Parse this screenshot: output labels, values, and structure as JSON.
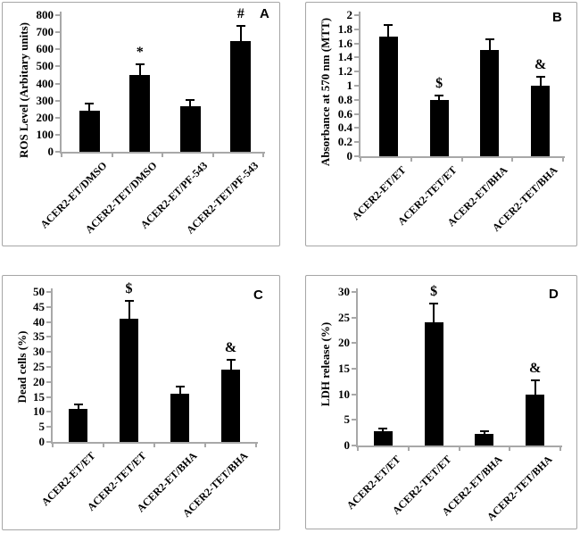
{
  "figure": {
    "description": "Four-panel bar chart figure, panels A-D, black bars with upper error bars and significance symbols",
    "background": "#ffffff"
  },
  "colors": {
    "bar": "#000000",
    "axis": "#a8a8a8",
    "panel_border": "#a6a6a6",
    "text": "#000000"
  },
  "chart_data": [
    {
      "type": "bar",
      "panel": "A",
      "title": "",
      "xlabel": "",
      "ylabel": "ROS Level (Arbitary units)",
      "categories": [
        "ACER2-ET/DMSO",
        "ACER2-TET/DMSO",
        "ACER2-ET/PF-543",
        "ACER2-TET/PF-543"
      ],
      "values": [
        240,
        450,
        265,
        650
      ],
      "errors": [
        40,
        65,
        40,
        85
      ],
      "annotations": [
        "",
        "*",
        "",
        "#"
      ],
      "ylim": [
        0,
        800
      ],
      "ytick_labels": [
        "0",
        "100",
        "200",
        "300",
        "400",
        "500",
        "600",
        "700",
        "800"
      ],
      "grid": false,
      "legend": false
    },
    {
      "type": "bar",
      "panel": "B",
      "title": "",
      "xlabel": "",
      "ylabel": "Absorbance at 570 nm (MTT)",
      "categories": [
        "ACER2-ET/ET",
        "ACER2-TET/ET",
        "ACER2-ET/BHA",
        "ACER2-TET/BHA"
      ],
      "values": [
        1.7,
        0.8,
        1.51,
        1.0
      ],
      "errors": [
        0.16,
        0.06,
        0.15,
        0.13
      ],
      "annotations": [
        "",
        "$",
        "",
        "&"
      ],
      "ylim": [
        0,
        2
      ],
      "ytick_labels": [
        "0",
        "0.2",
        "0.4",
        "0.6",
        "0.8",
        "1",
        "1.2",
        "1.4",
        "1.6",
        "1.8",
        "2"
      ],
      "grid": false,
      "legend": false
    },
    {
      "type": "bar",
      "panel": "C",
      "title": "",
      "xlabel": "",
      "ylabel": "Dead cells (%)",
      "categories": [
        "ACER2-ET/ET",
        "ACER2-TET/ET",
        "ACER2-ET/BHA",
        "ACER2-TET/BHA"
      ],
      "values": [
        11,
        41,
        16,
        24
      ],
      "errors": [
        1.5,
        6,
        2.5,
        3.5
      ],
      "annotations": [
        "",
        "$",
        "",
        "&"
      ],
      "ylim": [
        0,
        50
      ],
      "ytick_labels": [
        "0",
        "5",
        "10",
        "15",
        "20",
        "25",
        "30",
        "35",
        "40",
        "45",
        "50"
      ],
      "grid": false,
      "legend": false
    },
    {
      "type": "bar",
      "panel": "D",
      "title": "",
      "xlabel": "",
      "ylabel": "LDH release (%)",
      "categories": [
        "ACER2-ET/ET",
        "ACER2-TET/ET",
        "ACER2-ET/BHA",
        "ACER2-TET/BHA"
      ],
      "values": [
        2.8,
        24,
        2.2,
        10
      ],
      "errors": [
        0.6,
        3.7,
        0.6,
        2.8
      ],
      "annotations": [
        "",
        "$",
        "",
        "&"
      ],
      "ylim": [
        0,
        30
      ],
      "ytick_labels": [
        "0",
        "5",
        "10",
        "15",
        "20",
        "25",
        "30"
      ],
      "grid": false,
      "legend": false
    }
  ]
}
